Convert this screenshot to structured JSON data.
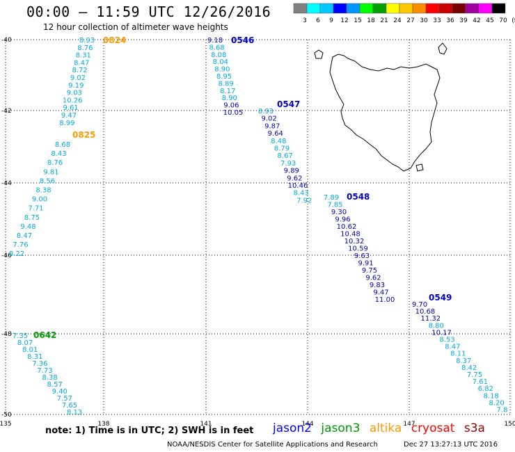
{
  "header": {
    "title": "00:00 — 11:59 UTC 12/26/2016",
    "subtitle": "12 hour collection of altimeter wave heights"
  },
  "colorbar": {
    "labels": [
      "3",
      "6",
      "9",
      "12",
      "15",
      "18",
      "21",
      "24",
      "27",
      "30",
      "33",
      "36",
      "39",
      "42",
      "45",
      "70",
      "(ft)"
    ],
    "colors": [
      "#808080",
      "#00ffff",
      "#00c8ff",
      "#0000ff",
      "#0096ff",
      "#00ff00",
      "#00a000",
      "#ffff00",
      "#ffc800",
      "#ff8c00",
      "#ff0000",
      "#c80000",
      "#780000",
      "#a000a0",
      "#ff00ff",
      "#000000"
    ]
  },
  "axes": {
    "lon_ticks": [
      "135",
      "138",
      "141",
      "144",
      "147",
      "150"
    ],
    "lat_ticks": [
      "-40",
      "-42",
      "-44",
      "-46",
      "-48",
      "-50"
    ]
  },
  "tracks": [
    {
      "label": "0824",
      "label_color": "#ff9900",
      "values": [
        "8.93",
        "8.76",
        "8.31",
        "8.47",
        "8.72",
        "9.02",
        "9.19",
        "9.03",
        "10.26",
        "9.61",
        "9.47",
        "8.99"
      ]
    },
    {
      "label": "0825",
      "label_color": "#ff9900",
      "values": [
        "8.68",
        "8.43",
        "8.76",
        "9.81",
        "8.56",
        "8.38",
        "9.00",
        "7.71",
        "8.75",
        "9.48",
        "8.47",
        "7.76",
        "8.22"
      ]
    },
    {
      "label": "0546",
      "label_color": "#0000cc",
      "values": [
        "9.18",
        "8.68",
        "8.08",
        "8.04",
        "8.90",
        "8.95",
        "8.89",
        "8.17",
        "8.90",
        "9.06",
        "10.05"
      ]
    },
    {
      "label": "0547",
      "label_color": "#0000cc",
      "values": [
        "8.93",
        "9.02",
        "9.87",
        "9.64",
        "8.48",
        "8.79",
        "8.67",
        "7.93",
        "9.89",
        "9.62",
        "10.46",
        "8.43",
        "7.92"
      ]
    },
    {
      "label": "0548",
      "label_color": "#0000cc",
      "values": [
        "7.89",
        "7.85",
        "9.30",
        "9.96",
        "10.62",
        "10.48",
        "10.32",
        "10.59",
        "9.63",
        "9.91",
        "9.75",
        "9.62",
        "9.83",
        "9.47",
        "11.00"
      ]
    },
    {
      "label": "0549",
      "label_color": "#0000cc",
      "values": [
        "9.70",
        "10.68",
        "11.32",
        "8.80",
        "10.17",
        "8.53",
        "8.47",
        "8.11",
        "8.37",
        "8.42",
        "7.75",
        "7.61",
        "6.82",
        "8.18",
        "8.20",
        "7.8"
      ]
    },
    {
      "label": "0642",
      "label_color": "#009900",
      "values": [
        "7.35",
        "8.07",
        "8.01",
        "8.31",
        "7.36",
        "7.73",
        "8.38",
        "8.57",
        "9.40",
        "7.57",
        "7.65",
        "8.13"
      ]
    }
  ],
  "footer": {
    "note": "note: 1) Time is in UTC; 2) SWH is in feet",
    "satellites": [
      {
        "name": "jason2",
        "color": "#0000ff"
      },
      {
        "name": "jason3",
        "color": "#009900"
      },
      {
        "name": "altika",
        "color": "#ff9900"
      },
      {
        "name": "cryosat",
        "color": "#ff0000"
      },
      {
        "name": "s3a",
        "color": "#990000"
      }
    ],
    "credit": "NOAA/NESDIS Center for Satellite Applications and Research",
    "timestamp": "Dec 27 13:27:13 UTC 2016"
  }
}
